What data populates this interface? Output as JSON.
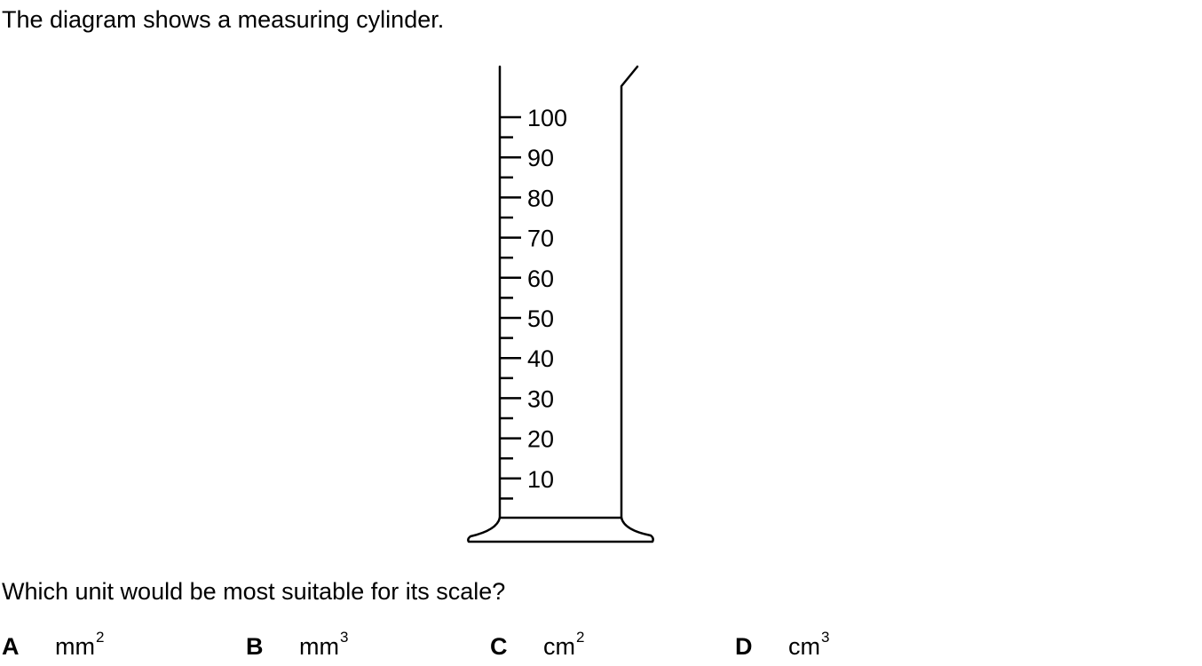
{
  "intro_text": "The diagram shows a measuring cylinder.",
  "question_text": "Which unit would be most suitable for its scale?",
  "cylinder": {
    "scale_labels": [
      "100",
      "90",
      "80",
      "70",
      "60",
      "50",
      "40",
      "30",
      "20",
      "10"
    ]
  },
  "options": [
    {
      "letter": "A",
      "unit": "mm",
      "power": "2"
    },
    {
      "letter": "B",
      "unit": "mm",
      "power": "3"
    },
    {
      "letter": "C",
      "unit": "cm",
      "power": "2"
    },
    {
      "letter": "D",
      "unit": "cm",
      "power": "3"
    }
  ]
}
